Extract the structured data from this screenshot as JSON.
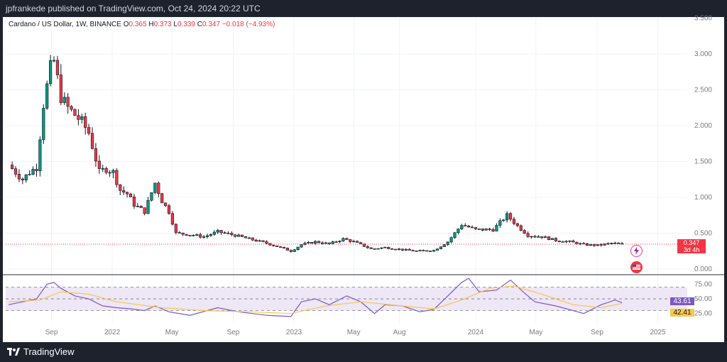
{
  "header": {
    "text": "jpfrankede published on TradingView.com, Oct 24, 2024 20:22 UTC"
  },
  "legend": {
    "symbol": "Cardano / US Dollar, 1W, BINANCE",
    "o_label": "O",
    "o": "0.365",
    "h_label": "H",
    "h": "0.373",
    "l_label": "L",
    "l": "0.339",
    "c_label": "C",
    "c": "0.347",
    "change": "−0.018 (−4.93%)"
  },
  "last_price": {
    "price": "0.347",
    "countdown": "3d 4h"
  },
  "footer": {
    "brand": "TradingView"
  },
  "colors": {
    "up": "#089981",
    "down": "#f23645",
    "rsi": "#7e57c2",
    "rsi_ma": "#f7c74f",
    "rsi_band": "#ede7f6"
  },
  "icons": [
    "lightning-icon",
    "flag-icon",
    "tradingview-logo-icon"
  ],
  "chart_data": [
    {
      "type": "candlestick",
      "title": "Cardano / US Dollar, 1W, BINANCE",
      "y_ticks": [
        "0.000",
        "0.500",
        "1.000",
        "1.500",
        "2.000",
        "2.500",
        "3.000",
        "3.500"
      ],
      "ylim": [
        0,
        3.5
      ],
      "x_ticks": [
        "Sep",
        "2022",
        "May",
        "Sep",
        "2023",
        "May",
        "Aug",
        "2024",
        "May",
        "Sep",
        "2025"
      ],
      "x_tick_dates": [
        "2021-09-01",
        "2022-01-01",
        "2022-05-01",
        "2022-09-01",
        "2023-01-01",
        "2023-05-01",
        "2023-08-01",
        "2024-01-01",
        "2024-05-01",
        "2024-09-01",
        "2025-01-01"
      ],
      "grid": true,
      "close_points": [
        [
          "2021-06-07",
          1.45
        ],
        [
          "2021-06-21",
          1.35
        ],
        [
          "2021-07-05",
          1.25
        ],
        [
          "2021-07-19",
          1.35
        ],
        [
          "2021-08-02",
          1.42
        ],
        [
          "2021-08-16",
          2.3
        ],
        [
          "2021-08-30",
          2.8
        ],
        [
          "2021-09-06",
          2.9
        ],
        [
          "2021-09-20",
          2.4
        ],
        [
          "2021-10-04",
          2.25
        ],
        [
          "2021-10-18",
          2.15
        ],
        [
          "2021-11-01",
          2.05
        ],
        [
          "2021-11-15",
          1.9
        ],
        [
          "2021-12-06",
          1.35
        ],
        [
          "2021-12-20",
          1.4
        ],
        [
          "2022-01-03",
          1.35
        ],
        [
          "2022-01-17",
          1.1
        ],
        [
          "2022-01-31",
          1.05
        ],
        [
          "2022-02-14",
          0.9
        ],
        [
          "2022-03-07",
          0.8
        ],
        [
          "2022-03-28",
          1.2
        ],
        [
          "2022-04-11",
          0.95
        ],
        [
          "2022-04-25",
          0.8
        ],
        [
          "2022-05-09",
          0.5
        ],
        [
          "2022-06-06",
          0.48
        ],
        [
          "2022-07-04",
          0.45
        ],
        [
          "2022-08-01",
          0.52
        ],
        [
          "2022-09-05",
          0.47
        ],
        [
          "2022-10-03",
          0.42
        ],
        [
          "2022-11-07",
          0.36
        ],
        [
          "2022-12-05",
          0.3
        ],
        [
          "2022-12-26",
          0.25
        ],
        [
          "2023-01-16",
          0.34
        ],
        [
          "2023-02-13",
          0.38
        ],
        [
          "2023-03-13",
          0.35
        ],
        [
          "2023-04-10",
          0.42
        ],
        [
          "2023-05-01",
          0.38
        ],
        [
          "2023-06-05",
          0.28
        ],
        [
          "2023-07-03",
          0.3
        ],
        [
          "2023-08-07",
          0.27
        ],
        [
          "2023-09-04",
          0.25
        ],
        [
          "2023-10-09",
          0.26
        ],
        [
          "2023-11-06",
          0.38
        ],
        [
          "2023-12-04",
          0.62
        ],
        [
          "2024-01-01",
          0.55
        ],
        [
          "2024-02-05",
          0.55
        ],
        [
          "2024-03-04",
          0.75
        ],
        [
          "2024-03-25",
          0.6
        ],
        [
          "2024-04-15",
          0.47
        ],
        [
          "2024-05-13",
          0.45
        ],
        [
          "2024-06-10",
          0.4
        ],
        [
          "2024-07-08",
          0.38
        ],
        [
          "2024-08-05",
          0.34
        ],
        [
          "2024-09-02",
          0.33
        ],
        [
          "2024-09-30",
          0.36
        ],
        [
          "2024-10-21",
          0.347
        ]
      ],
      "last_close": 0.347
    },
    {
      "type": "line",
      "title": "RSI",
      "y_ticks": [
        "25.00",
        "50.00",
        "75.00"
      ],
      "ylim": [
        15,
        90
      ],
      "series": [
        {
          "name": "",
          "points": [
            [
              "2021-06-07",
              40
            ],
            [
              "2021-07-05",
              45
            ],
            [
              "2021-08-02",
              50
            ],
            [
              "2021-08-23",
              75
            ],
            [
              "2021-09-06",
              78
            ],
            [
              "2021-09-20",
              68
            ],
            [
              "2021-10-18",
              55
            ],
            [
              "2021-11-15",
              50
            ],
            [
              "2021-12-13",
              38
            ],
            [
              "2022-01-10",
              35
            ],
            [
              "2022-02-07",
              33
            ],
            [
              "2022-03-07",
              30
            ],
            [
              "2022-03-28",
              38
            ],
            [
              "2022-04-25",
              28
            ],
            [
              "2022-06-06",
              22
            ],
            [
              "2022-08-01",
              35
            ],
            [
              "2022-09-12",
              28
            ],
            [
              "2022-11-07",
              22
            ],
            [
              "2022-12-26",
              20
            ],
            [
              "2023-01-16",
              45
            ],
            [
              "2023-02-13",
              50
            ],
            [
              "2023-03-13",
              40
            ],
            [
              "2023-04-17",
              55
            ],
            [
              "2023-05-15",
              45
            ],
            [
              "2023-06-12",
              25
            ],
            [
              "2023-07-03",
              40
            ],
            [
              "2023-08-07",
              38
            ],
            [
              "2023-09-11",
              28
            ],
            [
              "2023-10-09",
              32
            ],
            [
              "2023-11-06",
              55
            ],
            [
              "2023-12-04",
              78
            ],
            [
              "2023-12-18",
              85
            ],
            [
              "2024-01-08",
              62
            ],
            [
              "2024-02-12",
              65
            ],
            [
              "2024-03-11",
              82
            ],
            [
              "2024-04-08",
              60
            ],
            [
              "2024-04-29",
              45
            ],
            [
              "2024-06-10",
              38
            ],
            [
              "2024-07-15",
              30
            ],
            [
              "2024-08-05",
              25
            ],
            [
              "2024-09-09",
              40
            ],
            [
              "2024-10-07",
              48
            ],
            [
              "2024-10-21",
              43.61
            ]
          ]
        },
        {
          "name": "",
          "points": [
            [
              "2021-06-07",
              45
            ],
            [
              "2021-08-09",
              48
            ],
            [
              "2021-09-20",
              62
            ],
            [
              "2021-11-15",
              58
            ],
            [
              "2022-01-10",
              45
            ],
            [
              "2022-04-11",
              35
            ],
            [
              "2022-07-04",
              30
            ],
            [
              "2022-10-03",
              28
            ],
            [
              "2022-12-26",
              25
            ],
            [
              "2023-03-06",
              38
            ],
            [
              "2023-05-15",
              45
            ],
            [
              "2023-08-07",
              38
            ],
            [
              "2023-10-09",
              33
            ],
            [
              "2023-12-04",
              48
            ],
            [
              "2024-01-29",
              68
            ],
            [
              "2024-03-18",
              72
            ],
            [
              "2024-05-13",
              58
            ],
            [
              "2024-07-15",
              40
            ],
            [
              "2024-09-09",
              35
            ],
            [
              "2024-10-21",
              42.41
            ]
          ]
        }
      ],
      "band": [
        30,
        70
      ],
      "last_values": [
        "43.61",
        "42.41"
      ]
    }
  ]
}
